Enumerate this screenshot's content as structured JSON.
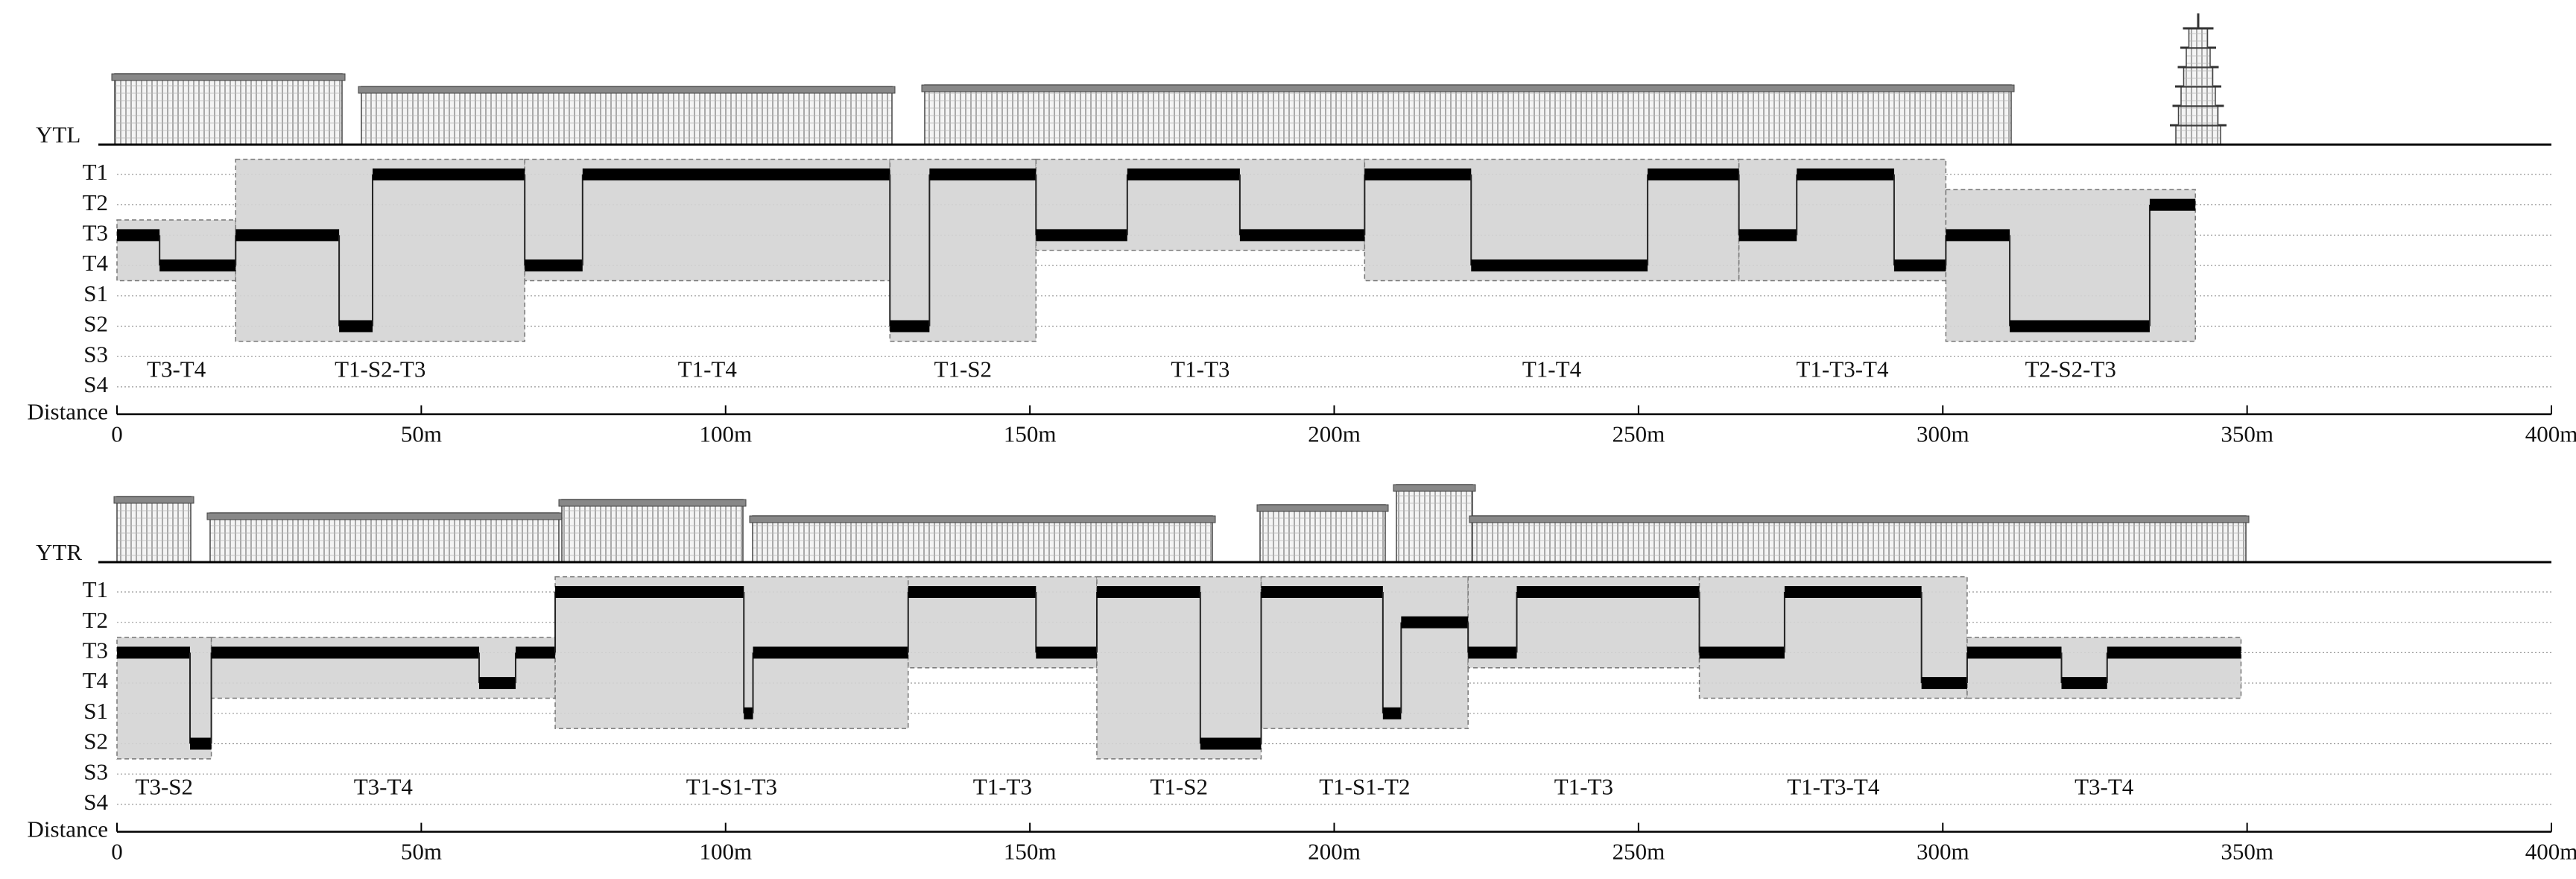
{
  "chart_data": [
    {
      "type": "step",
      "label": "YTL",
      "levels": [
        "T1",
        "T2",
        "T3",
        "T4",
        "S1",
        "S2",
        "S3",
        "S4"
      ],
      "xlabel": "Distance",
      "xlim": [
        0,
        400
      ],
      "xticks": [
        0,
        {
          "value": 50,
          "label": "50m"
        },
        {
          "value": 100,
          "label": "100m"
        },
        {
          "value": 150,
          "label": "150m"
        },
        {
          "value": 200,
          "label": "200m"
        },
        {
          "value": 250,
          "label": "250m"
        },
        {
          "value": 300,
          "label": "300m"
        },
        {
          "value": 350,
          "label": "350m"
        },
        {
          "value": 400,
          "label": "400m"
        }
      ],
      "segments": [
        {
          "label": "T3-T4",
          "steps": [
            {
              "x0": 0,
              "x1": 7,
              "level": "T3"
            },
            {
              "x0": 7,
              "x1": 19.5,
              "level": "T4"
            }
          ]
        },
        {
          "label": "T1-S2-T3",
          "steps": [
            {
              "x0": 19.5,
              "x1": 36.5,
              "level": "T3"
            },
            {
              "x0": 36.5,
              "x1": 42,
              "level": "S2"
            },
            {
              "x0": 42,
              "x1": 67,
              "level": "T1"
            }
          ]
        },
        {
          "label": "T1-T4",
          "steps": [
            {
              "x0": 67,
              "x1": 76.5,
              "level": "T4"
            },
            {
              "x0": 76.5,
              "x1": 127,
              "level": "T1"
            }
          ]
        },
        {
          "label": "T1-S2",
          "steps": [
            {
              "x0": 127,
              "x1": 133.5,
              "level": "S2"
            },
            {
              "x0": 133.5,
              "x1": 151,
              "level": "T1"
            }
          ]
        },
        {
          "label": "T1-T3",
          "steps": [
            {
              "x0": 151,
              "x1": 166,
              "level": "T3"
            },
            {
              "x0": 166,
              "x1": 184.5,
              "level": "T1"
            },
            {
              "x0": 184.5,
              "x1": 205,
              "level": "T3"
            }
          ]
        },
        {
          "label": "T1-T4",
          "steps": [
            {
              "x0": 205,
              "x1": 222.5,
              "level": "T1"
            },
            {
              "x0": 222.5,
              "x1": 251.5,
              "level": "T4"
            },
            {
              "x0": 251.5,
              "x1": 266.5,
              "level": "T1"
            }
          ]
        },
        {
          "label": "T1-T3-T4",
          "steps": [
            {
              "x0": 266.5,
              "x1": 276,
              "level": "T3"
            },
            {
              "x0": 276,
              "x1": 292,
              "level": "T1"
            },
            {
              "x0": 292,
              "x1": 300.5,
              "level": "T4"
            }
          ]
        },
        {
          "label": "T2-S2-T3",
          "steps": [
            {
              "x0": 300.5,
              "x1": 311,
              "level": "T3"
            },
            {
              "x0": 311,
              "x1": 334,
              "level": "S2"
            },
            {
              "x0": 334,
              "x1": 341.5,
              "level": "T2"
            }
          ]
        }
      ]
    },
    {
      "type": "step",
      "label": "YTR",
      "levels": [
        "T1",
        "T2",
        "T3",
        "T4",
        "S1",
        "S2",
        "S3",
        "S4"
      ],
      "xlabel": "Distance",
      "xlim": [
        0,
        400
      ],
      "xticks": [
        0,
        {
          "value": 50,
          "label": "50m"
        },
        {
          "value": 100,
          "label": "100m"
        },
        {
          "value": 150,
          "label": "150m"
        },
        {
          "value": 200,
          "label": "200m"
        },
        {
          "value": 250,
          "label": "250m"
        },
        {
          "value": 300,
          "label": "300m"
        },
        {
          "value": 350,
          "label": "350m"
        },
        {
          "value": 400,
          "label": "400m"
        }
      ],
      "segments": [
        {
          "label": "T3-S2",
          "steps": [
            {
              "x0": 0,
              "x1": 12,
              "level": "T3"
            },
            {
              "x0": 12,
              "x1": 15.5,
              "level": "S2"
            }
          ]
        },
        {
          "label": "T3-T4",
          "steps": [
            {
              "x0": 15.5,
              "x1": 59.5,
              "level": "T3"
            },
            {
              "x0": 59.5,
              "x1": 65.5,
              "level": "T4"
            },
            {
              "x0": 65.5,
              "x1": 72,
              "level": "T3"
            }
          ]
        },
        {
          "label": "T1-S1-T3",
          "steps": [
            {
              "x0": 72,
              "x1": 103,
              "level": "T1"
            },
            {
              "x0": 103,
              "x1": 104.5,
              "level": "S1"
            },
            {
              "x0": 104.5,
              "x1": 130,
              "level": "T3"
            }
          ]
        },
        {
          "label": "T1-T3",
          "steps": [
            {
              "x0": 130,
              "x1": 151,
              "level": "T1"
            },
            {
              "x0": 151,
              "x1": 161,
              "level": "T3"
            }
          ]
        },
        {
          "label": "T1-S2",
          "steps": [
            {
              "x0": 161,
              "x1": 178,
              "level": "T1"
            },
            {
              "x0": 178,
              "x1": 188,
              "level": "S2"
            }
          ]
        },
        {
          "label": "T1-S1-T2",
          "steps": [
            {
              "x0": 188,
              "x1": 208,
              "level": "T1"
            },
            {
              "x0": 208,
              "x1": 211,
              "level": "S1"
            },
            {
              "x0": 211,
              "x1": 222,
              "level": "T2"
            }
          ]
        },
        {
          "label": "T1-T3",
          "steps": [
            {
              "x0": 222,
              "x1": 230,
              "level": "T3"
            },
            {
              "x0": 230,
              "x1": 260,
              "level": "T1"
            }
          ]
        },
        {
          "label": "T1-T3-T4",
          "steps": [
            {
              "x0": 260,
              "x1": 274,
              "level": "T3"
            },
            {
              "x0": 274,
              "x1": 296.5,
              "level": "T1"
            },
            {
              "x0": 296.5,
              "x1": 304,
              "level": "T4"
            }
          ]
        },
        {
          "label": "T3-T4",
          "steps": [
            {
              "x0": 304,
              "x1": 319.5,
              "level": "T3"
            },
            {
              "x0": 319.5,
              "x1": 327,
              "level": "T4"
            },
            {
              "x0": 327,
              "x1": 349,
              "level": "T3"
            }
          ]
        }
      ]
    }
  ]
}
